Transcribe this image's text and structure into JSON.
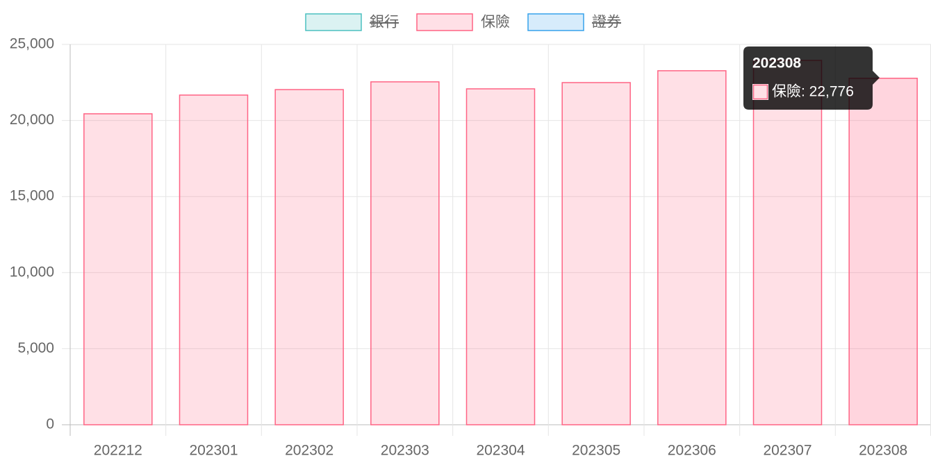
{
  "chart_data": {
    "type": "bar",
    "categories": [
      "202212",
      "202301",
      "202302",
      "202303",
      "202304",
      "202305",
      "202306",
      "202307",
      "202308"
    ],
    "legend": [
      {
        "name": "銀行",
        "color": "#4bc0c0",
        "hidden": true
      },
      {
        "name": "保險",
        "color": "#ff6384",
        "hidden": false
      },
      {
        "name": "證券",
        "color": "#36a2eb",
        "hidden": true
      }
    ],
    "series": [
      {
        "name": "保險",
        "color": "#ff6384",
        "values": [
          20440,
          21670,
          22030,
          22540,
          22080,
          22490,
          23270,
          23950,
          22776
        ]
      }
    ],
    "ylim": [
      0,
      25000
    ],
    "yticks": [
      0,
      {
        "value": 5000,
        "label": "5,000"
      },
      {
        "value": 10000,
        "label": "10,000"
      },
      {
        "value": 15000,
        "label": "15,000"
      },
      {
        "value": 20000,
        "label": "20,000"
      },
      {
        "value": 25000,
        "label": "25,000"
      }
    ],
    "grid": true,
    "tooltip": {
      "title": "202308",
      "label": "保險: 22,776"
    }
  }
}
